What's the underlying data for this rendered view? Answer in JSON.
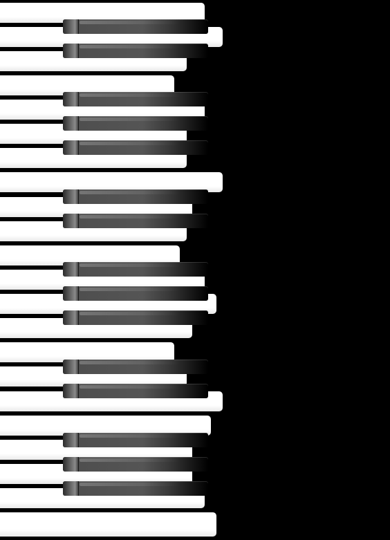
{
  "keyboard": {
    "description_visible_text": "",
    "white_key_count": 22,
    "black_key_count": 15,
    "colors": {
      "background": "#000000",
      "white_key": "#ffffff",
      "black_key": "#4d4d4d"
    }
  }
}
